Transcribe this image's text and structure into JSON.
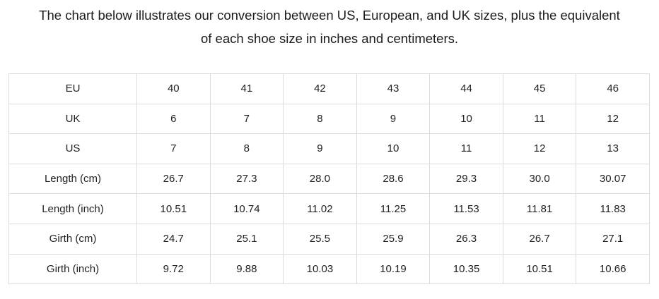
{
  "title": {
    "lines": [
      "The chart below illustrates our conversion between US, European, and UK sizes, plus the equivalent",
      "of each shoe size in inches and centimeters."
    ]
  },
  "colors": {
    "background": "#ffffff",
    "text": "#222222",
    "table_border": "#dcdcdc"
  },
  "table": {
    "rows": [
      {
        "label": "EU",
        "values": [
          "40",
          "41",
          "42",
          "43",
          "44",
          "45",
          "46"
        ]
      },
      {
        "label": "UK",
        "values": [
          "6",
          "7",
          "8",
          "9",
          "10",
          "11",
          "12"
        ]
      },
      {
        "label": "US",
        "values": [
          "7",
          "8",
          "9",
          "10",
          "11",
          "12",
          "13"
        ]
      },
      {
        "label": "Length (cm)",
        "values": [
          "26.7",
          "27.3",
          "28.0",
          "28.6",
          "29.3",
          "30.0",
          "30.07"
        ]
      },
      {
        "label": "Length (inch)",
        "values": [
          "10.51",
          "10.74",
          "11.02",
          "11.25",
          "11.53",
          "11.81",
          "11.83"
        ]
      },
      {
        "label": "Girth (cm)",
        "values": [
          "24.7",
          "25.1",
          "25.5",
          "25.9",
          "26.3",
          "26.7",
          "27.1"
        ]
      },
      {
        "label": "Girth (inch)",
        "values": [
          "9.72",
          "9.88",
          "10.03",
          "10.19",
          "10.35",
          "10.51",
          "10.66"
        ]
      }
    ]
  },
  "chart_data": {
    "type": "table",
    "title": "The chart below illustrates our conversion between US, European, and UK sizes, plus the equivalent of each shoe size in inches and centimeters.",
    "row_headers": [
      "EU",
      "UK",
      "US",
      "Length (cm)",
      "Length (inch)",
      "Girth (cm)",
      "Girth (inch)"
    ],
    "rows": [
      [
        40,
        41,
        42,
        43,
        44,
        45,
        46
      ],
      [
        6,
        7,
        8,
        9,
        10,
        11,
        12
      ],
      [
        7,
        8,
        9,
        10,
        11,
        12,
        13
      ],
      [
        26.7,
        27.3,
        28.0,
        28.6,
        29.3,
        30.0,
        30.07
      ],
      [
        10.51,
        10.74,
        11.02,
        11.25,
        11.53,
        11.81,
        11.83
      ],
      [
        24.7,
        25.1,
        25.5,
        25.9,
        26.3,
        26.7,
        27.1
      ],
      [
        9.72,
        9.88,
        10.03,
        10.19,
        10.35,
        10.51,
        10.66
      ]
    ],
    "legend_position": "none",
    "grid": true
  }
}
